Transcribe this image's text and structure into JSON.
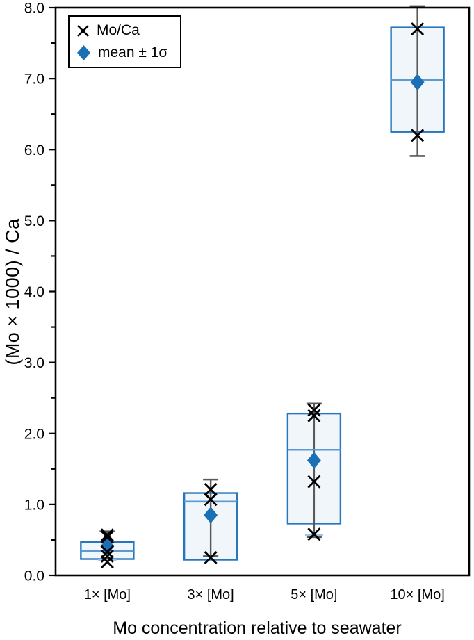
{
  "chart_data": {
    "type": "box",
    "title": "",
    "xlabel": "Mo concentration relative to seawater",
    "ylabel": "(Mo × 1000) / Ca",
    "ylim": [
      0,
      8
    ],
    "ytick_major_step": 1,
    "ytick_minor_step": 0.5,
    "ytick_label_format": "one-decimal",
    "grid": "off",
    "legend_position": "top-left-inside",
    "legend": [
      {
        "label": "Mo/Ca",
        "marker": "x-marker"
      },
      {
        "label": "mean ± 1σ",
        "marker": "mean-diamond"
      }
    ],
    "categories": [
      "1× [Mo]",
      "3× [Mo]",
      "5× [Mo]",
      "10× [Mo]"
    ],
    "groups": [
      {
        "category": "1× [Mo]",
        "points": [
          0.57,
          0.54,
          0.33,
          0.27,
          0.19
        ],
        "mean": 0.41,
        "sigma_high": 0.62,
        "sigma_low": 0.21,
        "q3": 0.47,
        "median": 0.34,
        "q1": 0.23,
        "blue_cap": 0.215
      },
      {
        "category": "3× [Mo]",
        "points": [
          1.21,
          1.07,
          0.25
        ],
        "mean": 0.85,
        "sigma_high": 1.35,
        "sigma_low": 0.27,
        "q3": 1.16,
        "median": 1.04,
        "q1": 0.22,
        "blue_cap": null
      },
      {
        "category": "5× [Mo]",
        "points": [
          2.33,
          2.25,
          1.32,
          0.58
        ],
        "mean": 1.62,
        "sigma_high": 2.42,
        "sigma_low": 0.54,
        "q3": 2.28,
        "median": 1.77,
        "q1": 0.73,
        "blue_cap": 0.57
      },
      {
        "category": "10× [Mo]",
        "points": [
          7.7,
          6.2
        ],
        "mean": 6.95,
        "sigma_high": 8.02,
        "sigma_low": 5.91,
        "q3": 7.72,
        "median": 6.98,
        "q1": 6.25,
        "blue_cap": null
      }
    ],
    "colors": {
      "box_stroke": "#2776BE",
      "box_fill": "#F1F6FB",
      "median_line": "#5B9BD5",
      "mean_diamond": "#1B6FB5",
      "error_bar": "#595959",
      "blue_cap": "#9DC3E6",
      "data_marker": "#000000",
      "axis": "#000000"
    }
  }
}
